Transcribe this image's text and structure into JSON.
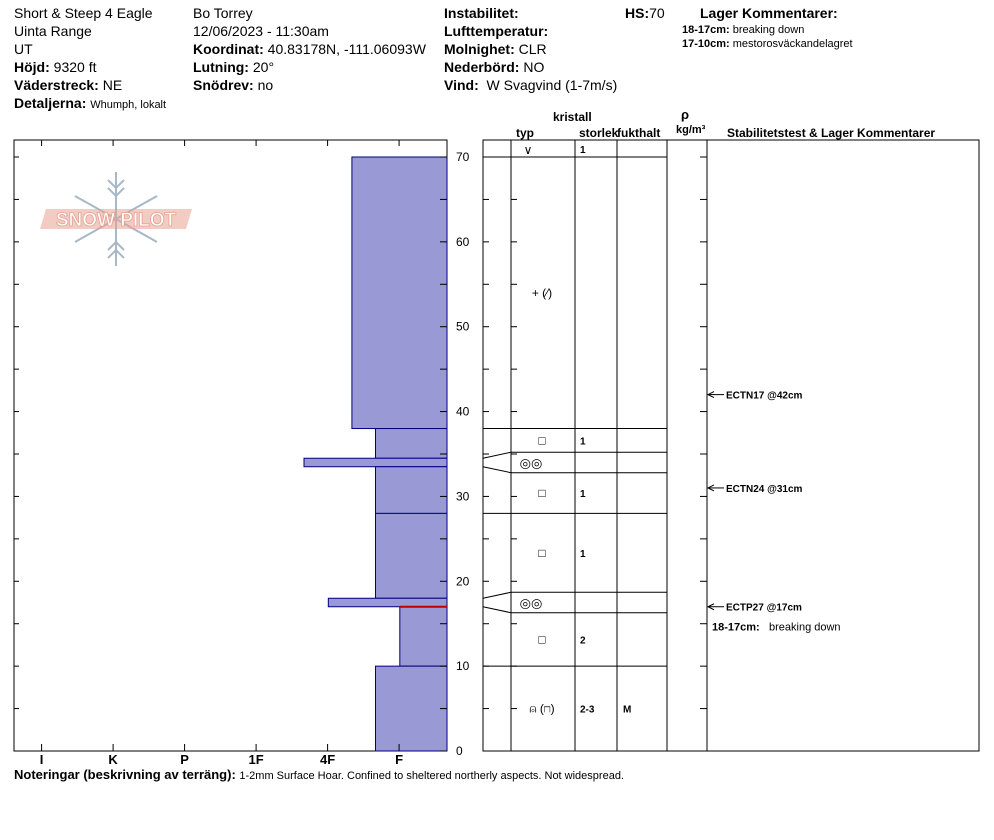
{
  "header": {
    "location": "Short & Steep 4 Eagle",
    "range": "Uinta Range",
    "state": "UT",
    "elevation_label": "Höjd:",
    "elevation_value": "9320 ft",
    "aspect_label": "Väderstreck:",
    "aspect_value": "NE",
    "details_label": "Detaljerna:",
    "details_value": "Whumph, lokalt",
    "observer": "Bo Torrey",
    "datetime": "12/06/2023 - 11:30am",
    "coord_label": "Koordinat:",
    "coord_value": "40.83178N, -111.06093W",
    "slope_label": "Lutning:",
    "slope_value": "20°",
    "drift_label": "Snödrev:",
    "drift_value": "no",
    "instability_label": "Instabilitet:",
    "airtemp_label": "Lufttemperatur:",
    "cloud_label": "Molnighet:",
    "cloud_value": "CLR",
    "precip_label": "Nederbörd:",
    "precip_value": "NO",
    "wind_label": "Vind:",
    "wind_value": "W Svagvind (1-7m/s)",
    "hs_label": "HS:",
    "hs_value": "70",
    "layer_comments_title": "Lager Kommentarer:",
    "layer_comments": [
      {
        "range": "18-17cm:",
        "text": "breaking down"
      },
      {
        "range": "17-10cm:",
        "text": "mestorosväckandelagret"
      }
    ]
  },
  "columns": {
    "crystal": "kristall",
    "type": "typ",
    "size": "storlek",
    "moisture": "fukthalt",
    "rho": "ρ",
    "density_unit": "kg/m³",
    "stability_title": "Stabilitetstest & Lager Kommentarer"
  },
  "logo_text": "SNOW PILOT",
  "notes_label": "Noteringar (beskrivning av terräng):",
  "notes_value": "1-2mm Surface Hoar. Confined to sheltered northerly aspects. Not widespread.",
  "colors": {
    "layer_fill": "#9999d6",
    "layer_stroke": "#000080",
    "highlight": "#c00000",
    "logo": "#e8a090",
    "logo_flake": "#a8b8c8"
  },
  "chart_data": {
    "type": "bar",
    "orientation": "horizontal",
    "ylim": [
      0,
      70
    ],
    "y_ticks": [
      0,
      10,
      20,
      30,
      40,
      50,
      60,
      70
    ],
    "hardness_scale": [
      "I",
      "K",
      "P",
      "1F",
      "4F",
      "F"
    ],
    "layers": [
      {
        "top": 70,
        "bottom": 38,
        "hardness": 1.33,
        "type": "+ (⁄)",
        "size": ""
      },
      {
        "top": 38,
        "bottom": 34.5,
        "hardness": 1.0,
        "type": "□",
        "size": "1"
      },
      {
        "top": 34.5,
        "bottom": 33.5,
        "hardness": 2.0,
        "type": "",
        "size": ""
      },
      {
        "top": 33.5,
        "bottom": 28,
        "hardness": 1.0,
        "type": "□",
        "size": "1"
      },
      {
        "top": 28,
        "bottom": 18,
        "hardness": 1.0,
        "type": "□",
        "size": "1"
      },
      {
        "top": 18,
        "bottom": 17,
        "hardness": 1.66,
        "type": "",
        "size": ""
      },
      {
        "top": 17,
        "bottom": 10,
        "hardness": 0.66,
        "type": "□",
        "size": "2"
      },
      {
        "top": 10,
        "bottom": 0,
        "hardness": 1.0,
        "type": "⍝ (⊓)",
        "size": "2-3",
        "moisture": "M"
      }
    ],
    "surface_layer": {
      "type": "∨",
      "size": "1"
    },
    "thin_layers": [
      {
        "top": 34.5,
        "bottom": 33.5,
        "type": "◎◎"
      },
      {
        "top": 18,
        "bottom": 17,
        "type": "◎◎"
      }
    ],
    "tests": [
      {
        "depth": 42,
        "label": "ECTN17 @42cm"
      },
      {
        "depth": 31,
        "label": "ECTN24 @31cm"
      },
      {
        "depth": 17,
        "label": "ECTP27 @17cm"
      }
    ],
    "test_comment": {
      "range": "18-17cm:",
      "text": "breaking down"
    },
    "highlight_depth": 17
  }
}
